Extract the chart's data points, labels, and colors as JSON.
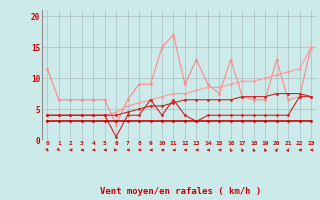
{
  "background_color": "#cceaea",
  "grid_color": "#aabbbb",
  "x_ticks": [
    0,
    1,
    2,
    3,
    4,
    5,
    6,
    7,
    8,
    9,
    10,
    11,
    12,
    13,
    14,
    15,
    16,
    17,
    18,
    19,
    20,
    21,
    22,
    23
  ],
  "xlabel": "Vent moyen/en rafales ( km/h )",
  "ylim": [
    0,
    21
  ],
  "yticks": [
    0,
    5,
    10,
    15,
    20
  ],
  "lines": [
    {
      "y": [
        11.5,
        6.5,
        6.5,
        6.5,
        6.5,
        6.5,
        2.5,
        6.5,
        9.0,
        9.0,
        15.0,
        17.0,
        9.0,
        13.0,
        9.0,
        7.5,
        13.0,
        7.0,
        6.5,
        6.5,
        13.0,
        6.5,
        7.0,
        15.0
      ],
      "color": "#ff8888",
      "lw": 0.8,
      "ms": 2.0
    },
    {
      "y": [
        4.0,
        4.0,
        4.0,
        4.0,
        4.0,
        4.0,
        4.5,
        5.5,
        6.0,
        6.5,
        7.0,
        7.5,
        7.5,
        8.0,
        8.5,
        8.5,
        9.0,
        9.5,
        9.5,
        10.0,
        10.5,
        11.0,
        11.5,
        15.0
      ],
      "color": "#ff9999",
      "lw": 0.8,
      "ms": 2.0
    },
    {
      "y": [
        4.0,
        4.0,
        4.0,
        4.0,
        4.0,
        4.0,
        0.5,
        4.0,
        4.0,
        6.5,
        4.0,
        6.5,
        4.0,
        3.0,
        4.0,
        4.0,
        4.0,
        4.0,
        4.0,
        4.0,
        4.0,
        4.0,
        7.0,
        7.0
      ],
      "color": "#cc2222",
      "lw": 0.8,
      "ms": 2.0
    },
    {
      "y": [
        4.0,
        4.0,
        4.0,
        4.0,
        4.0,
        4.0,
        4.0,
        4.5,
        5.0,
        5.5,
        5.5,
        6.0,
        6.5,
        6.5,
        6.5,
        6.5,
        6.5,
        7.0,
        7.0,
        7.0,
        7.5,
        7.5,
        7.5,
        7.0
      ],
      "color": "#cc2222",
      "lw": 0.8,
      "ms": 2.0
    },
    {
      "y": [
        3.0,
        3.0,
        3.0,
        3.0,
        3.0,
        3.0,
        3.0,
        3.0,
        3.0,
        3.0,
        3.0,
        3.0,
        3.0,
        3.0,
        3.0,
        3.0,
        3.0,
        3.0,
        3.0,
        3.0,
        3.0,
        3.0,
        3.0,
        3.0
      ],
      "color": "#cc0000",
      "lw": 1.2,
      "ms": 2.0
    }
  ],
  "wind_angles": [
    135,
    120,
    270,
    270,
    270,
    270,
    90,
    270,
    270,
    270,
    270,
    270,
    270,
    270,
    270,
    270,
    315,
    315,
    315,
    315,
    45,
    45,
    270,
    270
  ]
}
